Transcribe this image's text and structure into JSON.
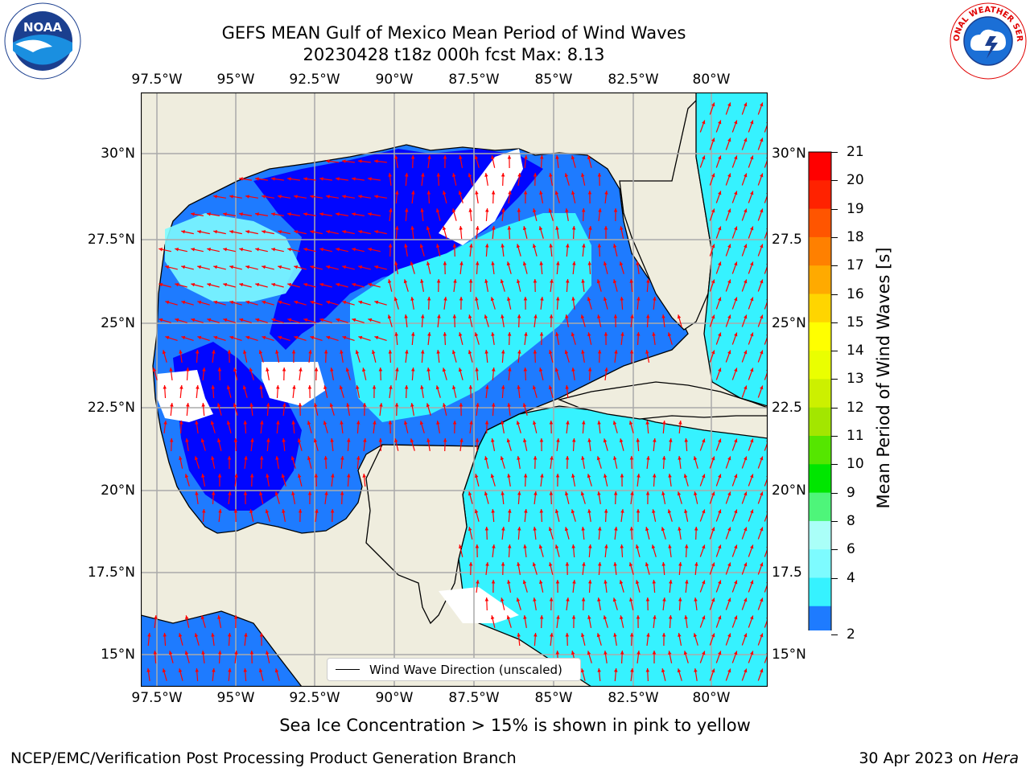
{
  "title_line1": "GEFS MEAN Gulf of Mexico Mean Period of Wind Waves",
  "title_line2": "20230428 t18z 000h fcst   Max: 8.13",
  "x_ticks": [
    "97.5°W",
    "95°W",
    "92.5°W",
    "90°W",
    "87.5°W",
    "85°W",
    "82.5°W",
    "80°W"
  ],
  "y_ticks": [
    "30°N",
    "27.5°N",
    "25°N",
    "22.5°N",
    "20°N",
    "17.5°N",
    "15°N"
  ],
  "y_ticks_right": [
    "30°N",
    "27.5",
    "25°N",
    "22.5",
    "20°N",
    "17.5",
    "15°N"
  ],
  "legend_label": "Wind Wave Direction (unscaled)",
  "colorbar": {
    "title": "Mean Period of Wind Waves [s]",
    "labels": [
      "2",
      "4",
      "6",
      "8",
      "9",
      "10",
      "11",
      "12",
      "13",
      "14",
      "15",
      "16",
      "17",
      "18",
      "19",
      "20",
      "21"
    ],
    "colors": [
      "#1e7bff",
      "#00e6ff",
      "#36f2ff",
      "#7dfbff",
      "#aafff8",
      "#4ef57a",
      "#00e600",
      "#55e600",
      "#a3e600",
      "#ccf000",
      "#eaff00",
      "#ffff00",
      "#ffd500",
      "#ffaa00",
      "#ff8000",
      "#ff5500",
      "#ff2200",
      "#ff0000"
    ],
    "under_color": "#0000ff"
  },
  "colors": {
    "land": "#efedde",
    "ocean_low": "#0000ff",
    "arrow": "#ff0000",
    "grid": "#aaaaaa"
  },
  "subtitle": "Sea Ice Concentration > 15% is shown in pink to yellow",
  "footer_left": "NCEP/EMC/Verification Post Processing Product Generation Branch",
  "footer_right_prefix": "30 Apr 2023 on ",
  "footer_right_italic": "Hera",
  "logos": {
    "left": "NOAA",
    "right": "NATIONAL WEATHER SERVICE"
  }
}
